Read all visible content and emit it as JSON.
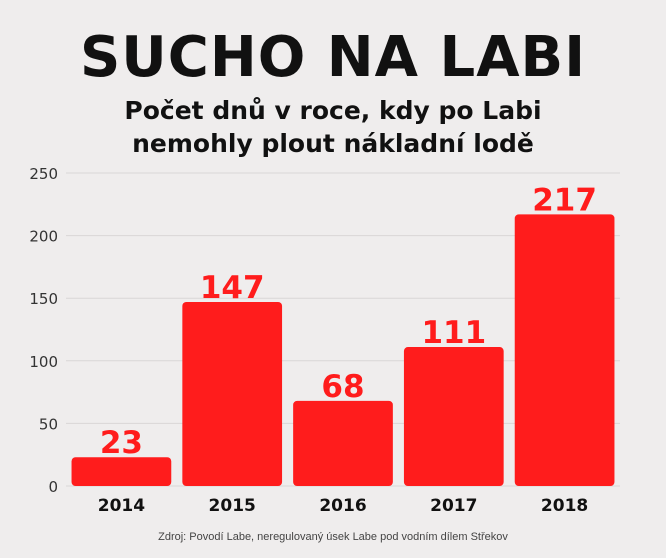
{
  "header": {
    "title": "SUCHO NA LABI",
    "subtitle_line1": "Počet dnů v roce, kdy po Labi",
    "subtitle_line2": "nemohly plout nákladní lodě"
  },
  "footer": {
    "source": "Zdroj: Povodí Labe, neregulovaný úsek Labe pod vodním dílem Střekov"
  },
  "colors": {
    "bar": "#ff1c1c",
    "label": "#ff1c1c",
    "grid": "#d9d6d6",
    "axis_text": "#333333",
    "background": "#efeded"
  },
  "chart_data": {
    "type": "bar",
    "title": "SUCHO NA LABI",
    "subtitle": "Počet dnů v roce, kdy po Labi nemohly plout nákladní lodě",
    "categories": [
      "2014",
      "2015",
      "2016",
      "2017",
      "2018"
    ],
    "values": [
      23,
      147,
      68,
      111,
      217
    ],
    "ylim": [
      0,
      250
    ],
    "yticks": [
      0,
      50,
      100,
      150,
      200,
      250
    ],
    "grid": true,
    "data_labels": true,
    "xlabel": "",
    "ylabel": ""
  }
}
